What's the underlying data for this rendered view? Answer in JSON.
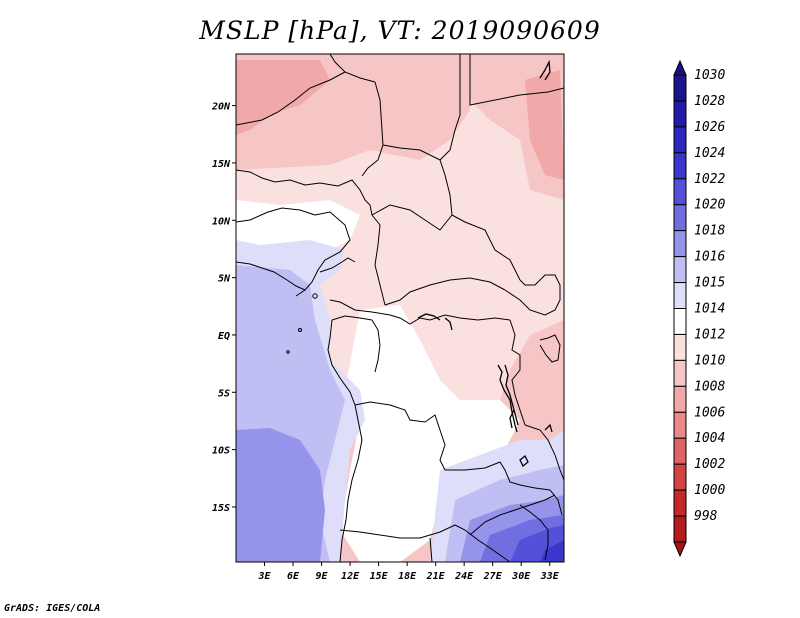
{
  "title": "MSLP [hPa], VT: 2019090609",
  "footer": "GrADS: IGES/COLA",
  "map": {
    "lat_labels": [
      "20N",
      "15N",
      "10N",
      "5N",
      "EQ",
      "5S",
      "10S",
      "15S"
    ],
    "lat_values": [
      20,
      15,
      10,
      5,
      0,
      -5,
      -10,
      -15
    ],
    "lon_labels": [
      "3E",
      "6E",
      "9E",
      "12E",
      "15E",
      "18E",
      "21E",
      "24E",
      "27E",
      "30E",
      "33E"
    ],
    "lon_values": [
      3,
      6,
      9,
      12,
      15,
      18,
      21,
      24,
      27,
      30,
      33
    ],
    "lon_range": [
      0,
      34.5
    ],
    "lat_range": [
      -19.8,
      24.5
    ]
  },
  "colorbar": {
    "labels": [
      "1030",
      "1028",
      "1026",
      "1024",
      "1022",
      "1020",
      "1018",
      "1016",
      "1015",
      "1014",
      "1012",
      "1010",
      "1008",
      "1006",
      "1004",
      "1002",
      "1000",
      "998"
    ],
    "colors": [
      "#1a138c",
      "#221aa8",
      "#2e28be",
      "#3c37cc",
      "#5550d8",
      "#716ee2",
      "#9593ea",
      "#bfbff4",
      "#dedefa",
      "#ffffff",
      "#fbe0e0",
      "#f6c6c6",
      "#f0a8a8",
      "#e88888",
      "#de6464",
      "#d44242",
      "#c62828",
      "#b41c1c"
    ],
    "top_color": "#1a0e8a",
    "bottom_color": "#a31313"
  }
}
